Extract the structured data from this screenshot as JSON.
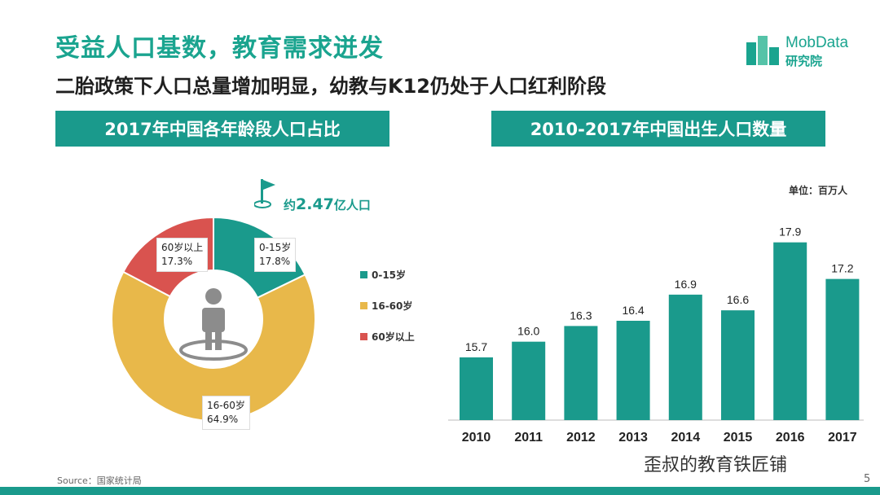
{
  "page": {
    "title": "受益人口基数，教育需求迸发",
    "subtitle": "二胎政策下人口总量增加明显，幼教与K12仍处于人口红利阶段",
    "brand": {
      "name": "MobData",
      "sub": "研究院"
    },
    "source": "Source：国家统计局",
    "watermark": "歪叔的教育铁匠铺",
    "page_number": "5",
    "colors": {
      "teal": "#1a9a8c",
      "yellow": "#e8b84a",
      "red": "#d9534f",
      "gray": "#8c8c8c"
    }
  },
  "left_panel": {
    "header": "2017年中国各年龄段人口占比",
    "total_prefix": "约",
    "total_value": "2.47",
    "total_suffix": "亿人口",
    "slice_labels": [
      {
        "name": "0-15岁",
        "pct": "17.8%"
      },
      {
        "name": "16-60岁",
        "pct": "64.9%"
      },
      {
        "name": "60岁以上",
        "pct": "17.3%"
      }
    ],
    "legend": [
      "0-15岁",
      "16-60岁",
      "60岁以上"
    ]
  },
  "right_panel": {
    "header": "2010-2017年中国出生人口数量",
    "unit": "单位：百万人"
  },
  "chart_data": [
    {
      "type": "pie",
      "title": "2017年中国各年龄段人口占比",
      "categories": [
        "0-15岁",
        "16-60岁",
        "60岁以上"
      ],
      "values": [
        17.8,
        64.9,
        17.3
      ],
      "colors": [
        "#1a9a8c",
        "#e8b84a",
        "#d9534f"
      ],
      "legend": "right"
    },
    {
      "type": "bar",
      "title": "2010-2017年中国出生人口数量",
      "categories": [
        "2010",
        "2011",
        "2012",
        "2013",
        "2014",
        "2015",
        "2016",
        "2017"
      ],
      "values": [
        15.7,
        16.0,
        16.3,
        16.4,
        16.9,
        16.6,
        17.9,
        17.2
      ],
      "labels": [
        "15.7",
        "16.0",
        "16.3",
        "16.4",
        "16.9",
        "16.6",
        "17.9",
        "17.2"
      ],
      "ylim": [
        14.5,
        18.3
      ],
      "color": "#1a9a8c"
    }
  ]
}
